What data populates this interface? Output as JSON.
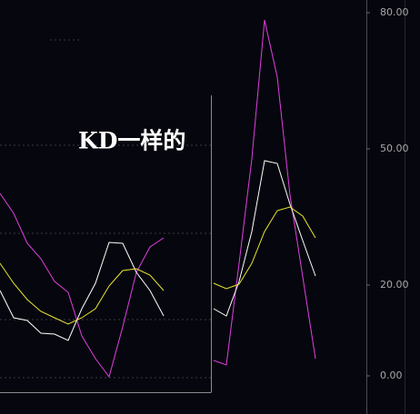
{
  "chart_data": [
    {
      "type": "line",
      "ylim": [
        -8.4,
        82.8
      ],
      "yticks": [
        {
          "value": 80,
          "label": "80.00"
        },
        {
          "value": 50,
          "label": "50.00"
        },
        {
          "value": 20,
          "label": "20.00"
        },
        {
          "value": 0,
          "label": "0.00"
        }
      ],
      "series": [
        {
          "color": "#e040e0",
          "values": [
            3.4,
            2.4,
            24.8,
            47.8,
            78.4,
            65.8,
            39.8,
            21.8,
            3.8
          ]
        },
        {
          "color": "#ffffff",
          "values": [
            14.8,
            13.2,
            20.8,
            31.8,
            47.4,
            46.8,
            37.8,
            29.8,
            22
          ]
        },
        {
          "color": "#e8e830",
          "values": [
            20.4,
            19.2,
            20.2,
            24.8,
            31.8,
            36.4,
            37.2,
            35.2,
            30.4
          ]
        }
      ]
    },
    {
      "type": "line",
      "annotation": "KD一样的",
      "ylim": [
        -8.4,
        82.8
      ],
      "series": [
        {
          "color": "#e040e0",
          "values": [
            40.2,
            35.8,
            29.2,
            25.8,
            20.8,
            18.4,
            8.8,
            3.8,
            -0.2,
            10.8,
            22.8,
            28.4,
            30.4
          ]
        },
        {
          "color": "#ffffff",
          "values": [
            18.8,
            12.8,
            12.2,
            9.4,
            9.2,
            7.8,
            14.8,
            20.4,
            29.4,
            29.2,
            22.8,
            18.8,
            13.2
          ]
        },
        {
          "color": "#e8e830",
          "values": [
            24.8,
            20.4,
            16.8,
            14.2,
            12.8,
            11.4,
            12.8,
            14.8,
            19.8,
            23.2,
            23.6,
            22.2,
            18.8
          ]
        }
      ]
    }
  ]
}
